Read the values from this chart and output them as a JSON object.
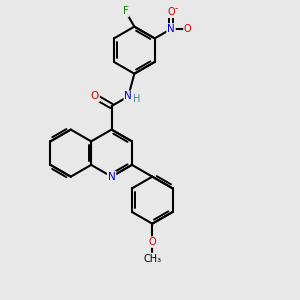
{
  "background_color": "#e8e8e8",
  "bond_color": "#000000",
  "atom_colors": {
    "N": "#0000cc",
    "O": "#cc0000",
    "F": "#008800",
    "C": "#000000",
    "H": "#4a8888"
  }
}
